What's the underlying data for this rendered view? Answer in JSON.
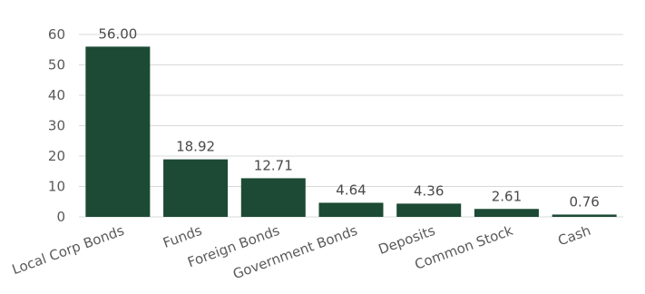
{
  "chart_data": {
    "type": "bar",
    "categories": [
      "Local Corp Bonds",
      "Funds",
      "Foreign Bonds",
      "Government Bonds",
      "Deposits",
      "Common Stock",
      "Cash"
    ],
    "values": [
      56.0,
      18.92,
      12.71,
      4.64,
      4.36,
      2.61,
      0.76
    ],
    "value_labels": [
      "56.00",
      "18.92",
      "12.71",
      "4.64",
      "4.36",
      "2.61",
      "0.76"
    ],
    "title": "",
    "xlabel": "",
    "ylabel": "",
    "ylim": [
      0,
      60
    ],
    "yticks": [
      0,
      10,
      20,
      30,
      40,
      50,
      60
    ],
    "grid": true,
    "bar_color": "#1c4a34",
    "label_rotation": "-20deg"
  }
}
